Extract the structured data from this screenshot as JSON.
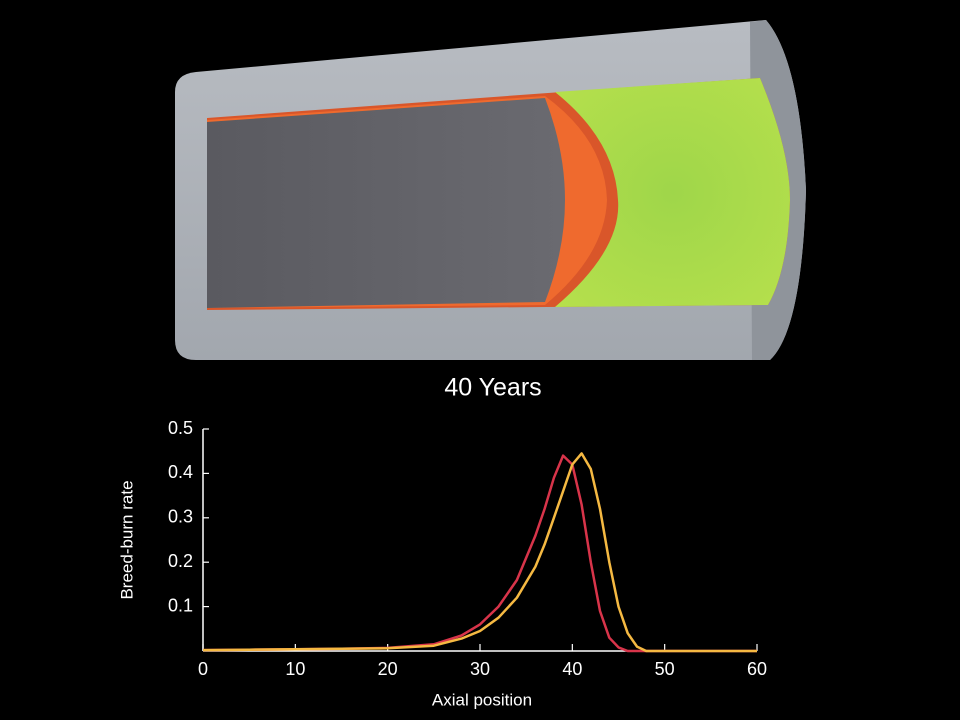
{
  "chart_data": {
    "type": "line",
    "title": "40 Years",
    "x_label": "Axial position",
    "y_label": "Breed-burn rate",
    "x": [
      0,
      5,
      10,
      15,
      20,
      25,
      28,
      30,
      32,
      34,
      36,
      37,
      38,
      39,
      40,
      41,
      42,
      43,
      44,
      45,
      46,
      47,
      48,
      50,
      55,
      60
    ],
    "series": [
      {
        "color": "#d8344a",
        "values": [
          0.002,
          0.003,
          0.004,
          0.005,
          0.007,
          0.015,
          0.035,
          0.06,
          0.1,
          0.16,
          0.26,
          0.32,
          0.39,
          0.44,
          0.42,
          0.33,
          0.2,
          0.09,
          0.03,
          0.008,
          0,
          0,
          0,
          0,
          0,
          0
        ]
      },
      {
        "color": "#f5b942",
        "values": [
          0.002,
          0.003,
          0.004,
          0.005,
          0.006,
          0.012,
          0.028,
          0.045,
          0.075,
          0.12,
          0.19,
          0.24,
          0.3,
          0.36,
          0.42,
          0.445,
          0.41,
          0.32,
          0.2,
          0.1,
          0.04,
          0.01,
          0,
          0,
          0,
          0
        ]
      }
    ],
    "xlim": [
      0,
      60
    ],
    "xticks": [
      0,
      10,
      20,
      30,
      40,
      50,
      60
    ],
    "ylim": [
      0,
      0.5
    ],
    "yticks": [
      0.1,
      0.2,
      0.3,
      0.4,
      0.5
    ],
    "grid": false
  }
}
